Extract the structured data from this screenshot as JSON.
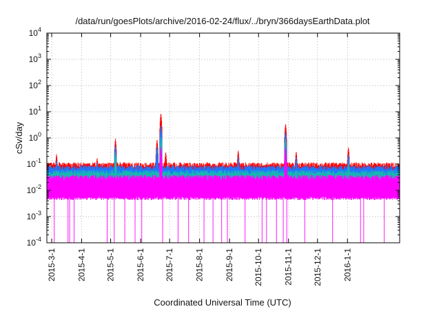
{
  "chart_data": {
    "type": "line",
    "title": "/data/run/goesPlots/archive/2016-02-24/flux/../bryn/366daysEarthData.plot",
    "xlabel": "Coordinated Universal Time (UTC)",
    "ylabel": "cSv/day",
    "yscale": "log",
    "ylim": [
      0.0001,
      10000
    ],
    "xlim": [
      "2015-02-24",
      "2016-02-24"
    ],
    "grid": true,
    "y_ticks": [
      {
        "base": "10",
        "exp": "-4",
        "value": 0.0001
      },
      {
        "base": "10",
        "exp": "-3",
        "value": 0.001
      },
      {
        "base": "10",
        "exp": "-2",
        "value": 0.01
      },
      {
        "base": "10",
        "exp": "-1",
        "value": 0.1
      },
      {
        "base": "10",
        "exp": "0",
        "value": 1
      },
      {
        "base": "10",
        "exp": "1",
        "value": 10
      },
      {
        "base": "10",
        "exp": "2",
        "value": 100
      },
      {
        "base": "10",
        "exp": "3",
        "value": 1000
      },
      {
        "base": "10",
        "exp": "4",
        "value": 10000
      }
    ],
    "x_ticks": [
      "2015-3-1",
      "2015-4-1",
      "2015-5-1",
      "2015-6-1",
      "2015-7-1",
      "2015-8-1",
      "2015-9-1",
      "2015-10-1",
      "2015-11-1",
      "2015-12-1",
      "2016-1-1"
    ],
    "x_tick_dates": [
      "2015-03-01",
      "2015-04-01",
      "2015-05-01",
      "2015-06-01",
      "2015-07-01",
      "2015-08-01",
      "2015-09-01",
      "2015-10-01",
      "2015-11-01",
      "2015-12-01",
      "2016-01-01"
    ],
    "series": [
      {
        "color": "#ff0000",
        "baseline": 0.09,
        "peaks": [
          [
            "2015-03-06",
            0.25
          ],
          [
            "2015-03-18",
            0.12
          ],
          [
            "2015-04-17",
            0.18
          ],
          [
            "2015-05-06",
            0.95
          ],
          [
            "2015-06-18",
            0.9
          ],
          [
            "2015-06-22",
            9.0
          ],
          [
            "2015-06-27",
            0.3
          ],
          [
            "2015-09-10",
            0.35
          ],
          [
            "2015-10-29",
            3.6
          ],
          [
            "2015-11-09",
            0.32
          ],
          [
            "2016-01-02",
            0.45
          ]
        ]
      },
      {
        "color": "#1e78ff",
        "baseline": 0.07,
        "peaks": [
          [
            "2015-03-06",
            0.15
          ],
          [
            "2015-04-17",
            0.12
          ],
          [
            "2015-05-06",
            0.55
          ],
          [
            "2015-06-18",
            0.5
          ],
          [
            "2015-06-22",
            3.2
          ],
          [
            "2015-09-10",
            0.2
          ],
          [
            "2015-10-29",
            1.8
          ],
          [
            "2015-11-09",
            0.2
          ],
          [
            "2016-01-02",
            0.25
          ]
        ]
      },
      {
        "color": "#19b7b0",
        "baseline": 0.045,
        "peaks": [
          [
            "2015-05-06",
            0.3
          ],
          [
            "2015-06-22",
            1.2
          ],
          [
            "2015-10-29",
            1.0
          ],
          [
            "2016-01-02",
            0.12
          ]
        ]
      },
      {
        "color": "#ff00ff",
        "baseline": 0.03,
        "floor": 0.005,
        "peaks": [
          [
            "2015-06-22",
            0.5
          ],
          [
            "2015-10-29",
            0.5
          ]
        ]
      }
    ]
  }
}
